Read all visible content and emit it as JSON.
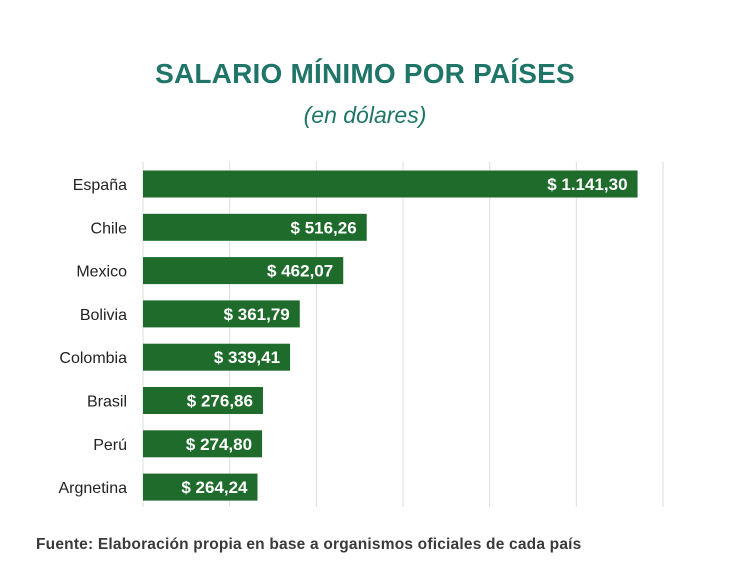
{
  "chart_data": {
    "type": "bar",
    "orientation": "horizontal",
    "title": "SALARIO MÍNIMO POR PAÍSES",
    "subtitle": "(en dólares)",
    "categories": [
      "España",
      "Chile",
      "Mexico",
      "Bolivia",
      "Colombia",
      "Brasil",
      "Perú",
      "Argnetina"
    ],
    "values": [
      1141.3,
      516.26,
      462.07,
      361.79,
      339.41,
      276.86,
      274.8,
      264.24
    ],
    "data_labels": [
      "$ 1.141,30",
      "$ 516,26",
      "$ 462,07",
      "$ 361,79",
      "$ 339,41",
      "$ 276,86",
      "$ 274,80",
      "$ 264,24"
    ],
    "xlim": [
      0,
      1200
    ],
    "grid": true,
    "bar_color": "#1e6b2b",
    "grid_color": "#dddddd"
  },
  "source": "Fuente: Elaboración propia en base a organismos oficiales de cada país"
}
